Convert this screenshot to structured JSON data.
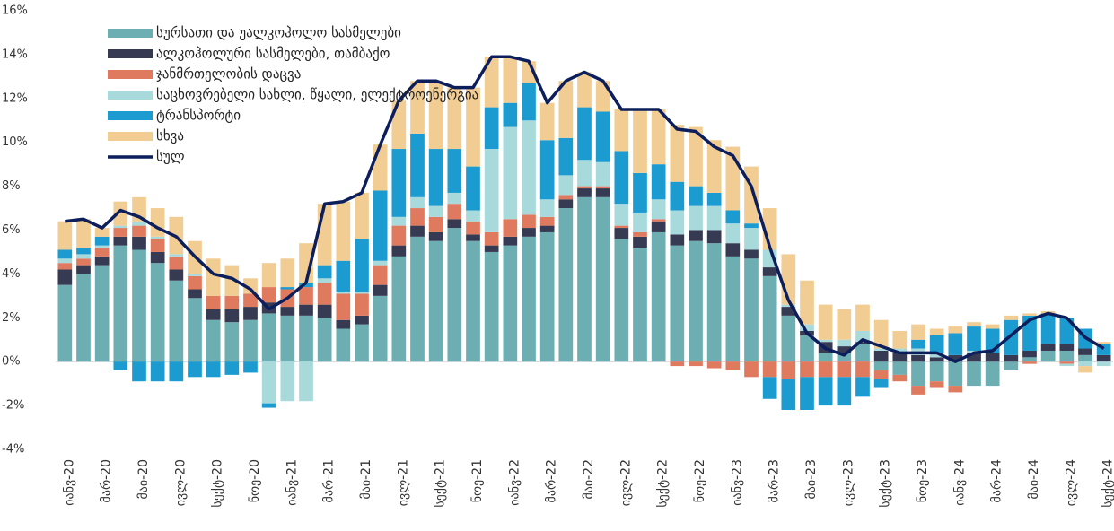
{
  "chart_data": {
    "type": "bar",
    "categories": [
      "იანვ-20",
      null,
      "მარ-20",
      null,
      "მაი-20",
      null,
      "ივლ-20",
      null,
      "სექტ-20",
      null,
      "ნოე-20",
      null,
      "იანვ-21",
      null,
      "მარ-21",
      null,
      "მაი-21",
      null,
      "ივლ-21",
      null,
      "სექტ-21",
      null,
      "ნოე-21",
      null,
      "იანვ-22",
      null,
      "მარ-22",
      null,
      "მაი-22",
      null,
      "ივლ-22",
      null,
      "სექტ-22",
      null,
      "ნოე-22",
      null,
      "იანვ-23",
      null,
      "მარ-23",
      null,
      "მაი-23",
      null,
      "ივლ-23",
      null,
      "სექტ-23",
      null,
      "ნოე-23",
      null,
      "იანვ-24",
      null,
      "მარ-24",
      null,
      "მაი-24",
      null,
      "ივლ-24",
      null,
      "სექტ-24"
    ],
    "series": [
      {
        "name": "სურსათი და უალკოჰოლო სასმელები",
        "color": "#6caeb2",
        "values": [
          3.5,
          4.0,
          4.4,
          5.3,
          5.1,
          4.5,
          3.7,
          2.9,
          1.9,
          1.8,
          1.9,
          2.2,
          2.1,
          2.1,
          2.0,
          1.5,
          1.7,
          3.0,
          4.8,
          5.7,
          5.5,
          6.1,
          5.5,
          5.0,
          5.3,
          5.7,
          5.9,
          7.0,
          7.5,
          7.5,
          5.6,
          5.2,
          5.9,
          5.3,
          5.5,
          5.4,
          4.8,
          4.7,
          3.9,
          2.1,
          1.2,
          0.4,
          0.4,
          0.8,
          -0.4,
          -0.6,
          -1.1,
          -0.9,
          -1.1,
          -1.1,
          -1.1,
          -0.4,
          0.2,
          0.5,
          0.5,
          0.3,
          0.0
        ]
      },
      {
        "name": "ალკოჰოლური სასმელები, თამბაქო",
        "color": "#363a52",
        "values": [
          0.7,
          0.4,
          0.4,
          0.4,
          0.6,
          0.5,
          0.5,
          0.4,
          0.5,
          0.6,
          0.6,
          0.5,
          0.4,
          0.5,
          0.6,
          0.4,
          0.4,
          0.5,
          0.5,
          0.5,
          0.4,
          0.4,
          0.3,
          0.3,
          0.4,
          0.4,
          0.3,
          0.4,
          0.4,
          0.4,
          0.5,
          0.5,
          0.5,
          0.5,
          0.5,
          0.6,
          0.6,
          0.4,
          0.4,
          0.4,
          0.2,
          0.5,
          0.3,
          0.1,
          0.5,
          0.4,
          0.3,
          0.2,
          0.3,
          0.4,
          0.4,
          0.3,
          0.3,
          0.3,
          0.3,
          0.3,
          0.3
        ]
      },
      {
        "name": "ჯანმრთელობის დაცვა",
        "color": "#e07a5f",
        "values": [
          0.3,
          0.3,
          0.4,
          0.4,
          0.5,
          0.6,
          0.6,
          0.6,
          0.6,
          0.6,
          0.6,
          0.7,
          0.8,
          0.8,
          1.0,
          1.2,
          1.0,
          0.9,
          0.9,
          0.8,
          0.7,
          0.7,
          0.6,
          0.6,
          0.8,
          0.6,
          0.4,
          0.2,
          0.1,
          0.1,
          0.1,
          0.2,
          0.1,
          -0.2,
          -0.2,
          -0.3,
          -0.4,
          -0.7,
          -0.7,
          -0.8,
          -0.7,
          -0.7,
          -0.7,
          -0.7,
          -0.4,
          -0.3,
          -0.4,
          -0.3,
          -0.3,
          0.0,
          0.0,
          0.0,
          -0.1,
          0.0,
          -0.1,
          0.0,
          0.0
        ]
      },
      {
        "name": "საცხოვრებელი სახლი, წყალი, ელექტროენერგია",
        "color": "#a8dadc",
        "values": [
          0.2,
          0.2,
          0.1,
          0.1,
          0.2,
          0.1,
          0.1,
          0.1,
          0.0,
          0.0,
          0.0,
          -1.9,
          -1.8,
          -1.8,
          0.2,
          0.1,
          0.1,
          0.2,
          0.4,
          0.5,
          0.5,
          0.5,
          0.5,
          3.8,
          4.2,
          4.3,
          0.8,
          0.9,
          1.2,
          1.1,
          1.0,
          0.9,
          0.9,
          1.1,
          1.1,
          1.1,
          0.9,
          1.0,
          0.8,
          0.1,
          0.3,
          0.1,
          0.3,
          0.5,
          0.1,
          0.2,
          0.3,
          0.2,
          0.0,
          0.1,
          0.0,
          0.0,
          0.0,
          0.0,
          -0.1,
          -0.2,
          -0.2
        ]
      },
      {
        "name": "ტრანსპორტი",
        "color": "#1b9bd0",
        "values": [
          0.4,
          0.3,
          0.4,
          -0.4,
          -0.9,
          -0.9,
          -0.9,
          -0.7,
          -0.7,
          -0.6,
          -0.5,
          -0.2,
          0.1,
          0.2,
          0.6,
          1.4,
          2.4,
          3.2,
          3.1,
          2.9,
          2.6,
          2.0,
          2.0,
          1.9,
          1.1,
          1.7,
          2.7,
          1.7,
          2.4,
          2.3,
          2.4,
          1.8,
          1.6,
          1.3,
          0.9,
          0.6,
          0.6,
          0.2,
          -1.0,
          -1.4,
          -1.5,
          -1.3,
          -1.3,
          -0.9,
          -0.4,
          0.0,
          0.4,
          0.8,
          1.0,
          1.1,
          1.1,
          1.6,
          1.6,
          1.4,
          1.2,
          0.9,
          0.5
        ]
      },
      {
        "name": "სხვა",
        "color": "#f2cd93",
        "values": [
          1.3,
          1.3,
          0.4,
          1.1,
          1.1,
          1.3,
          1.7,
          1.5,
          1.7,
          1.4,
          0.7,
          1.1,
          1.3,
          1.8,
          2.8,
          2.7,
          2.1,
          2.1,
          2.2,
          2.4,
          3.1,
          2.8,
          3.6,
          2.3,
          2.1,
          1.0,
          1.7,
          2.6,
          1.6,
          1.4,
          1.9,
          2.9,
          2.5,
          2.6,
          2.7,
          2.4,
          2.9,
          2.6,
          1.9,
          2.3,
          2.0,
          1.6,
          1.4,
          1.2,
          1.3,
          0.8,
          0.7,
          0.3,
          0.3,
          0.2,
          0.2,
          0.2,
          0.1,
          0.1,
          0.0,
          -0.3,
          0.1
        ]
      },
      {
        "name": "სულ",
        "color": "#0c1e5b",
        "type": "line",
        "values": [
          6.4,
          6.5,
          6.1,
          6.9,
          6.6,
          6.1,
          5.7,
          4.8,
          4.0,
          3.8,
          3.3,
          2.4,
          2.9,
          3.6,
          7.2,
          7.3,
          7.7,
          9.9,
          11.9,
          12.8,
          12.8,
          12.5,
          12.5,
          13.9,
          13.9,
          13.7,
          11.8,
          12.8,
          13.2,
          12.8,
          11.5,
          11.5,
          11.5,
          10.6,
          10.5,
          9.8,
          9.4,
          8.0,
          5.2,
          2.8,
          1.3,
          0.6,
          0.3,
          1.0,
          0.7,
          0.4,
          0.4,
          0.4,
          0.0,
          0.4,
          0.5,
          1.2,
          1.9,
          2.2,
          2.0,
          1.1,
          0.6
        ]
      }
    ],
    "ylim": [
      -4,
      16
    ],
    "yticks": [
      {
        "value": -4,
        "label": "-4%"
      },
      {
        "value": -2,
        "label": "-2%"
      },
      {
        "value": 0,
        "label": "0%"
      },
      {
        "value": 2,
        "label": "2%"
      },
      {
        "value": 4,
        "label": "4%"
      },
      {
        "value": 6,
        "label": "6%"
      },
      {
        "value": 8,
        "label": "8%"
      },
      {
        "value": 10,
        "label": "10%"
      },
      {
        "value": 12,
        "label": "12%"
      },
      {
        "value": 14,
        "label": "14%"
      },
      {
        "value": 16,
        "label": "16%"
      }
    ],
    "grid": false,
    "legend": "top-left"
  }
}
